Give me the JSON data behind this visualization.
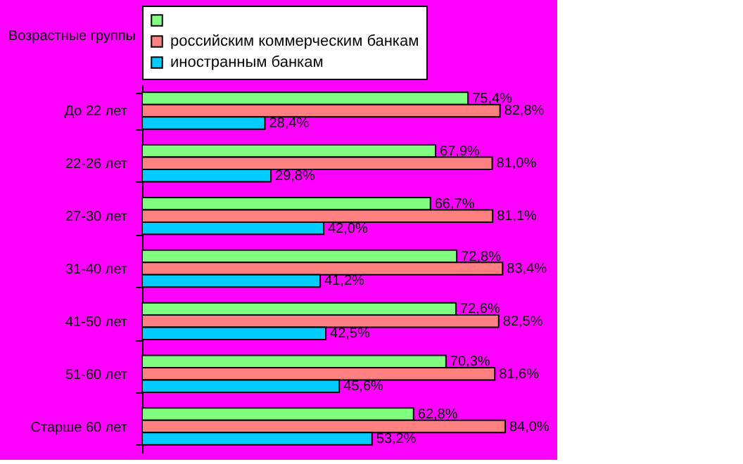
{
  "chart_data": {
    "type": "bar",
    "orientation": "horizontal",
    "ylabel": "Возрастные группы",
    "categories": [
      "До 22 лет",
      "22-26 лет",
      "27-30 лет",
      "31-40 лет",
      "41-50 лет",
      "51-60 лет",
      "Старше 60 лет"
    ],
    "legend": "top",
    "series": [
      {
        "color": "#80ff80",
        "values": [
          75.4,
          67.9,
          66.7,
          72.8,
          72.6,
          70.3,
          62.8
        ],
        "value_labels": [
          "75,4%",
          "67,9%",
          "66,7%",
          "72,8%",
          "72,6%",
          "70,3%",
          "62,8%"
        ]
      },
      {
        "name": "российским коммерческим банкам",
        "color": "#ff8080",
        "values": [
          82.8,
          81.0,
          81.1,
          83.4,
          82.5,
          81.6,
          84.0
        ],
        "value_labels": [
          "82,8%",
          "81,0%",
          "81,1%",
          "83,4%",
          "82,5%",
          "81,6%",
          "84,0%"
        ]
      },
      {
        "name": "иностранным банкам",
        "color": "#00ccff",
        "values": [
          28.4,
          29.8,
          42.0,
          41.2,
          42.5,
          45.6,
          53.2
        ],
        "value_labels": [
          "28,4%",
          "29,8%",
          "42,0%",
          "41,2%",
          "42,5%",
          "45,6%",
          "53,2%"
        ]
      }
    ]
  }
}
